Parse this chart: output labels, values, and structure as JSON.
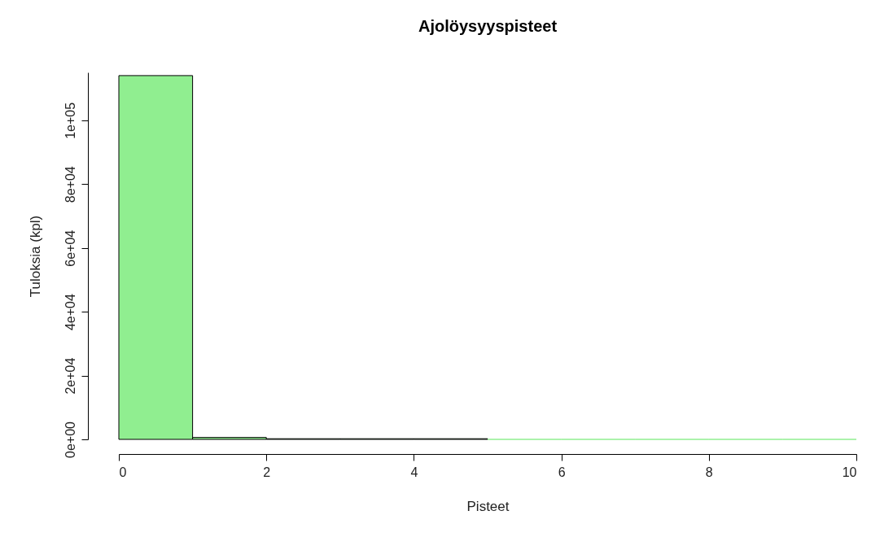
{
  "chart_data": {
    "type": "histogram",
    "title": "Ajolöysyyspisteet",
    "xlabel": "Pisteet",
    "ylabel": "Tuloksia (kpl)",
    "bins": [
      0,
      1,
      2,
      3,
      4,
      5,
      6,
      7,
      8,
      9,
      10
    ],
    "values": [
      114000,
      600,
      200,
      200,
      200,
      0,
      0,
      0,
      0,
      0
    ],
    "color": "#90ee90",
    "xlim": [
      0,
      10
    ],
    "xticks": [
      0,
      2,
      4,
      6,
      8,
      10
    ],
    "ylim": [
      0,
      115000
    ],
    "yticks": [
      {
        "value": 0,
        "label": "0e+00"
      },
      {
        "value": 20000,
        "label": "2e+04"
      },
      {
        "value": 40000,
        "label": "4e+04"
      },
      {
        "value": 60000,
        "label": "6e+04"
      },
      {
        "value": 80000,
        "label": "8e+04"
      },
      {
        "value": 100000,
        "label": "1e+05"
      }
    ],
    "grid": false
  }
}
